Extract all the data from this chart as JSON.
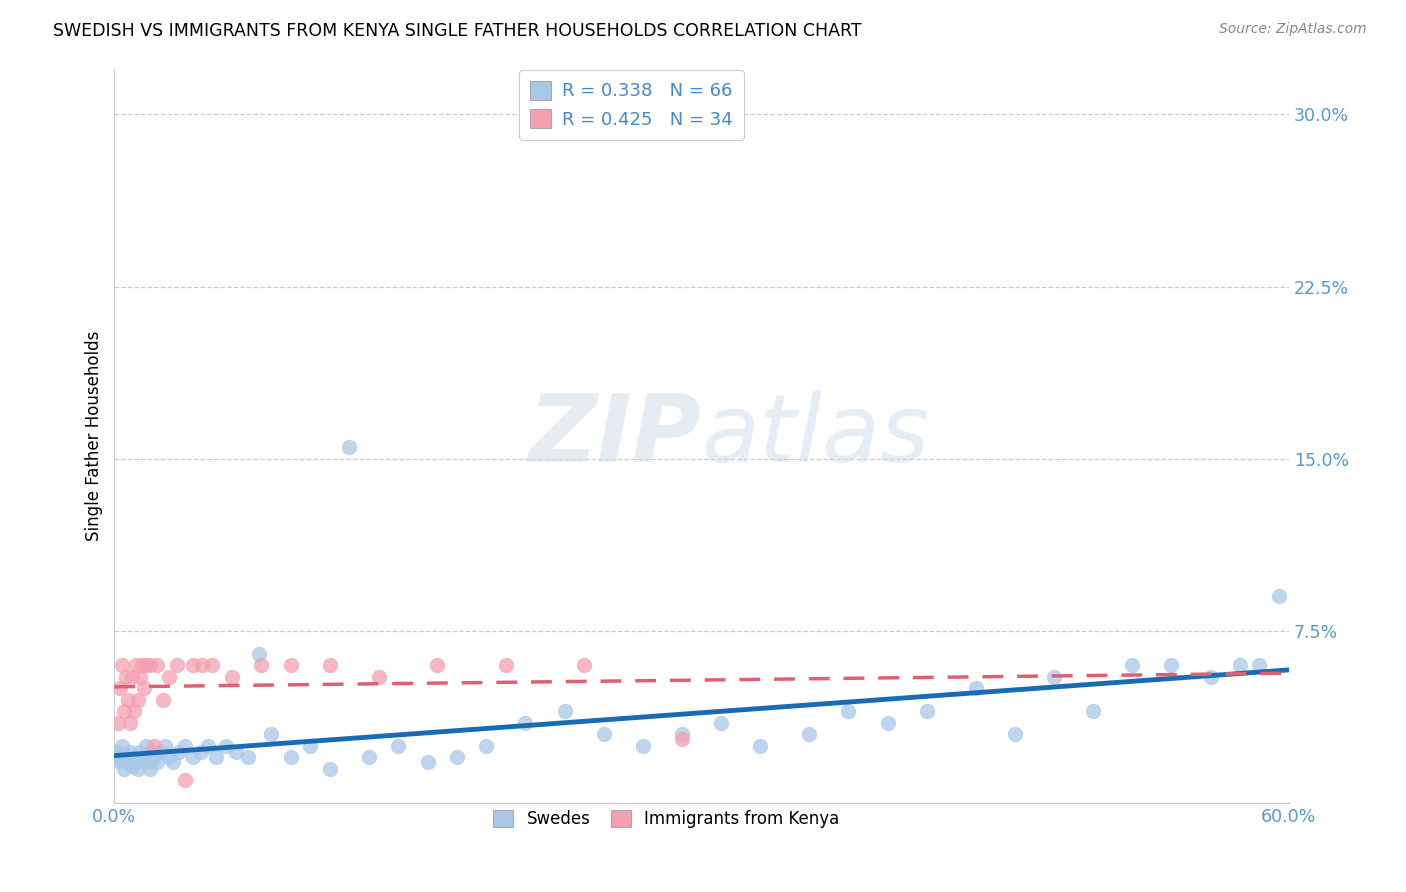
{
  "title": "SWEDISH VS IMMIGRANTS FROM KENYA SINGLE FATHER HOUSEHOLDS CORRELATION CHART",
  "source": "Source: ZipAtlas.com",
  "ylabel": "Single Father Households",
  "xlim": [
    0.0,
    0.6
  ],
  "ylim": [
    0.0,
    0.32
  ],
  "xticks": [
    0.0,
    0.1,
    0.2,
    0.3,
    0.4,
    0.5,
    0.6
  ],
  "yticks": [
    0.0,
    0.075,
    0.15,
    0.225,
    0.3
  ],
  "ytick_labels": [
    "",
    "7.5%",
    "15.0%",
    "22.5%",
    "30.0%"
  ],
  "xtick_labels": [
    "0.0%",
    "",
    "",
    "",
    "",
    "",
    "60.0%"
  ],
  "swedish_color": "#a8c8e8",
  "kenya_color": "#f4a0b0",
  "swedish_line_color": "#1a6bb5",
  "kenya_line_color": "#e06070",
  "R_swedish": 0.338,
  "N_swedish": 66,
  "R_kenya": 0.425,
  "N_kenya": 34,
  "legend_labels": [
    "Swedes",
    "Immigrants from Kenya"
  ],
  "swedish_x": [
    0.001,
    0.002,
    0.003,
    0.004,
    0.005,
    0.006,
    0.007,
    0.008,
    0.009,
    0.01,
    0.011,
    0.012,
    0.013,
    0.014,
    0.015,
    0.016,
    0.017,
    0.018,
    0.019,
    0.02,
    0.022,
    0.024,
    0.026,
    0.028,
    0.03,
    0.033,
    0.036,
    0.04,
    0.044,
    0.048,
    0.052,
    0.057,
    0.062,
    0.068,
    0.074,
    0.08,
    0.09,
    0.1,
    0.11,
    0.12,
    0.13,
    0.145,
    0.16,
    0.175,
    0.19,
    0.21,
    0.23,
    0.25,
    0.27,
    0.29,
    0.31,
    0.33,
    0.355,
    0.375,
    0.395,
    0.415,
    0.44,
    0.46,
    0.48,
    0.5,
    0.52,
    0.54,
    0.56,
    0.575,
    0.585,
    0.595
  ],
  "swedish_y": [
    0.02,
    0.022,
    0.018,
    0.025,
    0.015,
    0.02,
    0.018,
    0.022,
    0.016,
    0.02,
    0.018,
    0.015,
    0.022,
    0.018,
    0.02,
    0.025,
    0.018,
    0.015,
    0.022,
    0.02,
    0.018,
    0.022,
    0.025,
    0.02,
    0.018,
    0.022,
    0.025,
    0.02,
    0.022,
    0.025,
    0.02,
    0.025,
    0.022,
    0.02,
    0.065,
    0.03,
    0.02,
    0.025,
    0.015,
    0.155,
    0.02,
    0.025,
    0.018,
    0.02,
    0.025,
    0.035,
    0.04,
    0.03,
    0.025,
    0.03,
    0.035,
    0.025,
    0.03,
    0.04,
    0.035,
    0.04,
    0.05,
    0.03,
    0.055,
    0.04,
    0.06,
    0.06,
    0.055,
    0.06,
    0.06,
    0.09
  ],
  "kenya_x": [
    0.002,
    0.003,
    0.004,
    0.005,
    0.006,
    0.007,
    0.008,
    0.009,
    0.01,
    0.011,
    0.012,
    0.013,
    0.014,
    0.015,
    0.016,
    0.018,
    0.02,
    0.022,
    0.025,
    0.028,
    0.032,
    0.036,
    0.04,
    0.045,
    0.05,
    0.06,
    0.075,
    0.09,
    0.11,
    0.135,
    0.165,
    0.2,
    0.24,
    0.29
  ],
  "kenya_y": [
    0.035,
    0.05,
    0.06,
    0.04,
    0.055,
    0.045,
    0.035,
    0.055,
    0.04,
    0.06,
    0.045,
    0.055,
    0.06,
    0.05,
    0.06,
    0.06,
    0.025,
    0.06,
    0.045,
    0.055,
    0.06,
    0.01,
    0.06,
    0.06,
    0.06,
    0.055,
    0.06,
    0.06,
    0.06,
    0.055,
    0.06,
    0.06,
    0.06,
    0.028
  ]
}
